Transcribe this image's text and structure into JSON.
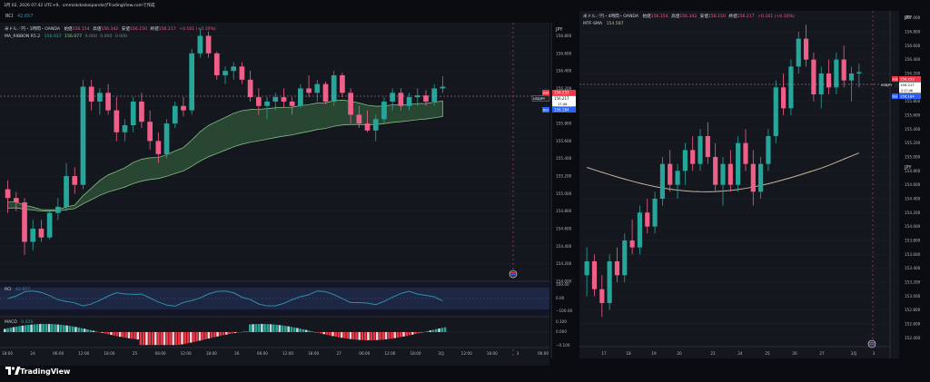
{
  "header": {
    "indicator_name": "RCI",
    "indicator_value": "42.657",
    "timestamp_line": "3月 02, 2026 07:42 UTC+9、cmmiskdoskoipandaがTradingView.comで作成"
  },
  "left": {
    "symbol_line": "米ドル／円・1時間・OANDA",
    "ohlc": [
      {
        "label": "始値",
        "value": "156.154"
      },
      {
        "label": "高値",
        "value": "156.342"
      },
      {
        "label": "安値",
        "value": "156.150"
      },
      {
        "label": "終値",
        "value": "156.217"
      },
      {
        "label": "",
        "value": "+0.161 (+0.10%)"
      }
    ],
    "indicator_line": {
      "name": "MA_RIBBON R5.2",
      "values": [
        "156.037",
        "156.077",
        "0.000",
        "0.000",
        "0.000"
      ]
    },
    "currency": "JPY",
    "price_ticks": [
      "156.800",
      "156.600",
      "156.400",
      "156.200",
      "156.000",
      "155.800",
      "155.600",
      "155.400",
      "155.200",
      "155.000",
      "154.800",
      "154.600",
      "154.400",
      "154.200",
      "154.000"
    ],
    "badges": {
      "ask": {
        "label": "Ask",
        "value": "156.233"
      },
      "last": {
        "label": "USDJPY",
        "value": "156.217",
        "countdown": "17:46"
      },
      "bid": {
        "label": "Bid",
        "value": "156.184"
      }
    },
    "rci_pane": {
      "label": "RCI",
      "value": "42.657",
      "ticks": [
        "100.00",
        "0.00",
        "−100.00"
      ]
    },
    "macd_pane": {
      "label": "MACD",
      "value": "0.020",
      "ticks": [
        "0.100",
        "0.000",
        "−0.100"
      ]
    },
    "time_ticks": [
      "18:00",
      "24",
      "06:00",
      "12:00",
      "18:00",
      "25",
      "06:00",
      "12:00",
      "18:00",
      "26",
      "06:00",
      "12:00",
      "18:00",
      "27",
      "06:00",
      "12:00",
      "18:00",
      "3月",
      "12:00",
      "18:00",
      "3",
      "06:00"
    ]
  },
  "right": {
    "symbol_line": "米ドル／円・4時間・OANDA",
    "ohlc": [
      {
        "label": "始値",
        "value": "156.154"
      },
      {
        "label": "高値",
        "value": "156.342"
      },
      {
        "label": "安値",
        "value": "156.150"
      },
      {
        "label": "終値",
        "value": "156.217"
      },
      {
        "label": "",
        "value": "+0.161 (+0.10%)"
      }
    ],
    "indicator_line": {
      "name": "MTF-SMA",
      "values": [
        "154.587"
      ]
    },
    "currency": "JPY",
    "price_ticks": [
      "157.000",
      "156.800",
      "156.600",
      "156.400",
      "156.200",
      "156.000",
      "155.800",
      "155.600",
      "155.400",
      "155.200",
      "155.000",
      "154.800",
      "154.600",
      "154.400",
      "154.200",
      "154.000",
      "153.800",
      "153.600",
      "153.400",
      "153.200",
      "153.000",
      "152.800",
      "152.600",
      "152.400"
    ],
    "badges": {
      "ask": {
        "label": "Ask",
        "value": "156.233"
      },
      "last": {
        "label": "USDJPY",
        "value": "156.217",
        "countdown": "2:17:46"
      },
      "bid": {
        "label": "Bid",
        "value": "156.184"
      }
    },
    "time_ticks": [
      "17",
      "18",
      "19",
      "20",
      "21",
      "24",
      "25",
      "26",
      "27",
      "3月",
      "3"
    ]
  },
  "footer": {
    "brand": "TradingView"
  },
  "colors": {
    "up": "#26a69a",
    "down": "#ef5f8a",
    "background": "#0b0c10",
    "sma": "#c8b79d",
    "ribbon_fill": "#2c4f36",
    "ribbon_line": "#8fcf8f",
    "rci_line": "#2f8fa8",
    "ask": "#f23645",
    "bid": "#2962ff"
  },
  "chart_data": [
    {
      "type": "candlestick",
      "title": "米ドル／円・1時間・OANDA",
      "timeframe": "1H",
      "ylim": [
        154.0,
        156.95
      ],
      "candles_approx": [
        [
          155.05,
          155.15,
          154.78,
          154.95
        ],
        [
          154.95,
          155.02,
          154.8,
          154.9
        ],
        [
          154.9,
          154.95,
          154.3,
          154.45
        ],
        [
          154.45,
          154.7,
          154.35,
          154.6
        ],
        [
          154.6,
          154.7,
          154.45,
          154.5
        ],
        [
          154.5,
          154.82,
          154.48,
          154.78
        ],
        [
          154.78,
          154.95,
          154.7,
          154.85
        ],
        [
          154.85,
          155.35,
          154.8,
          155.2
        ],
        [
          155.2,
          155.3,
          155.0,
          155.1
        ],
        [
          155.1,
          156.3,
          155.05,
          156.22
        ],
        [
          156.22,
          156.3,
          155.95,
          156.05
        ],
        [
          156.05,
          156.2,
          155.9,
          156.15
        ],
        [
          156.15,
          156.25,
          155.9,
          155.95
        ],
        [
          155.95,
          156.1,
          155.6,
          155.7
        ],
        [
          155.7,
          155.85,
          155.6,
          155.78
        ],
        [
          155.78,
          156.1,
          155.7,
          156.05
        ],
        [
          156.05,
          156.15,
          155.75,
          155.82
        ],
        [
          155.82,
          155.95,
          155.5,
          155.6
        ],
        [
          155.6,
          155.7,
          155.35,
          155.45
        ],
        [
          155.45,
          155.85,
          155.4,
          155.8
        ],
        [
          155.8,
          156.05,
          155.75,
          156.0
        ],
        [
          156.0,
          156.1,
          155.88,
          155.95
        ],
        [
          155.95,
          156.65,
          155.9,
          156.6
        ],
        [
          156.6,
          156.88,
          156.55,
          156.8
        ],
        [
          156.8,
          156.85,
          156.55,
          156.6
        ],
        [
          156.6,
          156.62,
          156.3,
          156.35
        ],
        [
          156.35,
          156.45,
          156.25,
          156.4
        ],
        [
          156.4,
          156.5,
          156.3,
          156.45
        ],
        [
          156.45,
          156.5,
          156.25,
          156.3
        ],
        [
          156.3,
          156.4,
          156.05,
          156.1
        ],
        [
          156.1,
          156.2,
          155.9,
          156.0
        ],
        [
          156.0,
          156.1,
          155.85,
          156.05
        ],
        [
          156.05,
          156.15,
          155.95,
          156.1
        ],
        [
          156.1,
          156.2,
          155.98,
          156.05
        ],
        [
          156.05,
          156.1,
          155.9,
          156.0
        ],
        [
          156.0,
          156.25,
          155.98,
          156.2
        ],
        [
          156.2,
          156.35,
          156.1,
          156.15
        ],
        [
          156.15,
          156.3,
          156.05,
          156.25
        ],
        [
          156.25,
          156.28,
          156.02,
          156.05
        ],
        [
          156.05,
          156.4,
          156.0,
          156.35
        ],
        [
          156.35,
          156.38,
          156.1,
          156.15
        ],
        [
          156.15,
          156.2,
          155.8,
          155.9
        ],
        [
          155.9,
          156.0,
          155.75,
          155.8
        ],
        [
          155.8,
          155.95,
          155.7,
          155.72
        ],
        [
          155.72,
          155.9,
          155.6,
          155.85
        ],
        [
          155.85,
          156.1,
          155.8,
          156.05
        ],
        [
          156.05,
          156.2,
          155.95,
          156.15
        ],
        [
          156.15,
          156.2,
          155.95,
          156.0
        ],
        [
          156.0,
          156.15,
          155.95,
          156.1
        ],
        [
          156.1,
          156.2,
          156.0,
          156.12
        ],
        [
          156.12,
          156.18,
          156.0,
          156.05
        ],
        [
          156.05,
          156.25,
          156.0,
          156.2
        ],
        [
          156.2,
          156.34,
          156.15,
          156.22
        ]
      ],
      "ribbon": {
        "fast_end": 156.077,
        "slow_end": 156.037
      },
      "last_price": 156.217,
      "subpanes": [
        {
          "name": "RCI",
          "last": 42.657,
          "range": [
            -100,
            100
          ]
        },
        {
          "name": "MACD",
          "last": 0.02,
          "range": [
            -0.1,
            0.1
          ]
        }
      ]
    },
    {
      "type": "candlestick",
      "title": "米ドル／円・4時間・OANDA",
      "timeframe": "4H",
      "ylim": [
        152.3,
        157.1
      ],
      "candles_approx": [
        [
          153.3,
          153.7,
          153.0,
          153.5
        ],
        [
          153.5,
          153.6,
          153.0,
          153.1
        ],
        [
          153.1,
          153.3,
          152.7,
          152.9
        ],
        [
          152.9,
          153.6,
          152.8,
          153.5
        ],
        [
          153.5,
          153.7,
          153.2,
          153.3
        ],
        [
          153.3,
          153.9,
          153.2,
          153.8
        ],
        [
          153.8,
          154.1,
          153.6,
          153.7
        ],
        [
          153.7,
          154.3,
          153.6,
          154.2
        ],
        [
          154.2,
          154.4,
          153.9,
          154.0
        ],
        [
          154.0,
          154.5,
          153.9,
          154.4
        ],
        [
          154.4,
          155.0,
          154.3,
          154.9
        ],
        [
          154.9,
          155.1,
          154.5,
          154.6
        ],
        [
          154.6,
          154.9,
          154.4,
          154.8
        ],
        [
          154.8,
          155.2,
          154.6,
          155.1
        ],
        [
          155.1,
          155.3,
          154.8,
          154.9
        ],
        [
          154.9,
          155.4,
          154.8,
          155.3
        ],
        [
          155.3,
          155.5,
          154.9,
          155.0
        ],
        [
          155.0,
          155.2,
          154.5,
          154.6
        ],
        [
          154.6,
          155.0,
          154.3,
          154.9
        ],
        [
          154.9,
          155.1,
          154.5,
          154.6
        ],
        [
          154.6,
          155.3,
          154.5,
          155.2
        ],
        [
          155.2,
          155.4,
          154.8,
          154.9
        ],
        [
          154.9,
          155.1,
          154.3,
          154.5
        ],
        [
          154.5,
          155.0,
          154.4,
          154.9
        ],
        [
          154.9,
          155.4,
          154.8,
          155.3
        ],
        [
          155.3,
          156.1,
          155.2,
          156.0
        ],
        [
          156.0,
          156.2,
          155.6,
          155.7
        ],
        [
          155.7,
          156.4,
          155.6,
          156.3
        ],
        [
          156.3,
          156.8,
          156.2,
          156.7
        ],
        [
          156.7,
          156.9,
          156.3,
          156.4
        ],
        [
          156.4,
          156.5,
          155.8,
          155.9
        ],
        [
          155.9,
          156.3,
          155.7,
          156.2
        ],
        [
          156.2,
          156.4,
          155.9,
          156.0
        ],
        [
          156.0,
          156.5,
          155.9,
          156.4
        ],
        [
          156.4,
          156.6,
          156.0,
          156.1
        ],
        [
          156.1,
          156.3,
          155.8,
          156.2
        ],
        [
          156.2,
          156.34,
          156.0,
          156.22
        ]
      ],
      "sma_end": 154.587,
      "last_price": 156.217
    }
  ]
}
